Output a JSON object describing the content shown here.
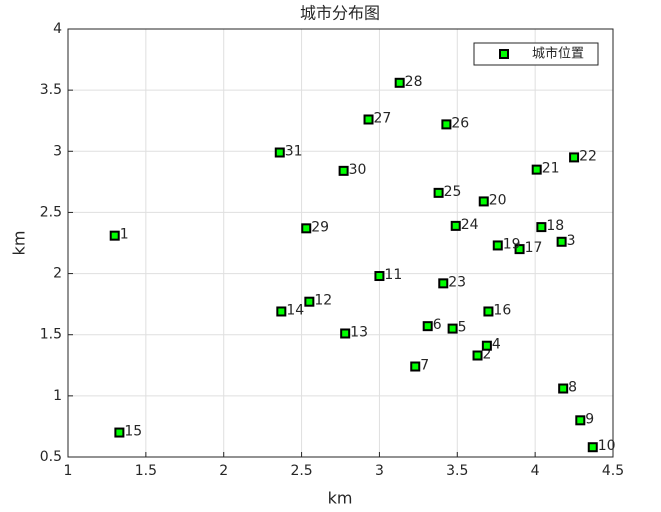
{
  "chart_data": {
    "type": "scatter",
    "title": "城市分布图",
    "xlabel": "km",
    "ylabel": "km",
    "series": [
      {
        "name": "城市位置",
        "color": "#00ff00",
        "x": [
          1.3,
          3.63,
          4.17,
          3.69,
          3.47,
          3.31,
          3.23,
          4.18,
          4.29,
          4.37,
          3.0,
          2.55,
          2.78,
          2.37,
          1.33,
          3.7,
          3.9,
          4.04,
          3.76,
          3.67,
          4.01,
          4.25,
          3.41,
          3.49,
          3.38,
          3.43,
          2.93,
          3.13,
          2.53,
          2.77,
          2.36
        ],
        "values": [
          2.31,
          1.33,
          2.26,
          1.41,
          1.55,
          1.57,
          1.24,
          1.06,
          0.8,
          0.58,
          1.98,
          1.77,
          1.51,
          1.69,
          0.7,
          1.69,
          2.2,
          2.38,
          2.23,
          2.59,
          2.85,
          2.95,
          1.92,
          2.39,
          2.66,
          3.22,
          3.26,
          3.56,
          2.37,
          2.84,
          2.99
        ],
        "labels": [
          "1",
          "2",
          "3",
          "4",
          "5",
          "6",
          "7",
          "8",
          "9",
          "10",
          "11",
          "12",
          "13",
          "14",
          "15",
          "16",
          "17",
          "18",
          "19",
          "20",
          "21",
          "22",
          "23",
          "24",
          "25",
          "26",
          "27",
          "28",
          "29",
          "30",
          "31"
        ]
      }
    ],
    "xlim": [
      1,
      4.5
    ],
    "xticks": [
      1,
      1.5,
      2,
      2.5,
      3,
      3.5,
      4,
      4.5
    ],
    "ylim": [
      0.5,
      4
    ],
    "yticks": [
      0.5,
      1,
      1.5,
      2,
      2.5,
      3,
      3.5,
      4
    ],
    "grid": true,
    "legend": "upper-right"
  }
}
